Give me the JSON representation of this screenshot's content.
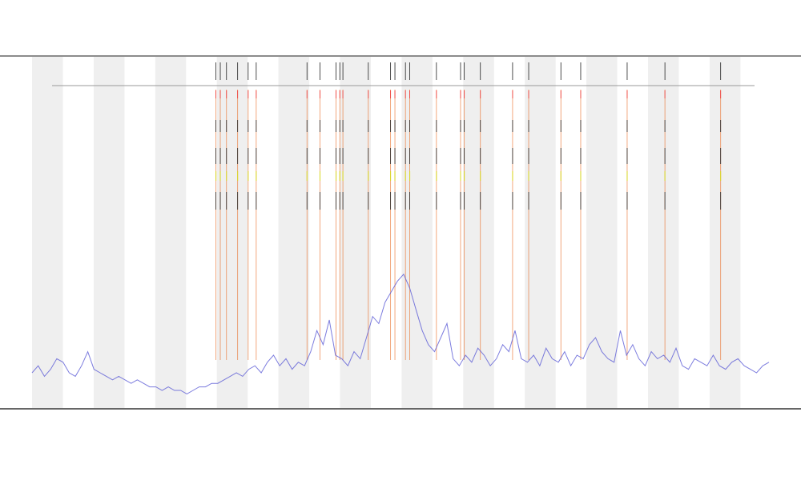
{
  "chart_data": {
    "type": "line",
    "x": [
      0,
      1,
      2,
      3,
      4,
      5,
      6,
      7,
      8,
      9,
      10,
      11,
      12,
      13,
      14,
      15,
      16,
      17,
      18,
      19,
      20,
      21,
      22,
      23,
      24,
      25,
      26,
      27,
      28,
      29,
      30,
      31,
      32,
      33,
      34,
      35,
      36,
      37,
      38,
      39,
      40,
      41,
      42,
      43,
      44,
      45,
      46,
      47,
      48,
      49,
      50,
      51,
      52,
      53,
      54,
      55,
      56,
      57,
      58,
      59,
      60,
      61,
      62,
      63,
      64,
      65,
      66,
      67,
      68,
      69,
      70,
      71,
      72,
      73,
      74,
      75,
      76,
      77,
      78,
      79,
      80,
      81,
      82,
      83,
      84,
      85,
      86,
      87,
      88,
      89,
      90,
      91,
      92,
      93,
      94,
      95,
      96,
      97,
      98,
      99,
      100,
      101,
      102,
      103,
      104,
      105,
      106,
      107,
      108,
      109,
      110,
      111,
      112,
      113,
      114,
      115,
      116,
      117,
      118,
      119
    ],
    "series": [
      {
        "color": "#5b5bd6",
        "values": [
          10,
          12,
          9,
          11,
          14,
          13,
          10,
          9,
          12,
          16,
          11,
          10,
          9,
          8,
          9,
          8,
          7,
          8,
          7,
          6,
          6,
          5,
          6,
          5,
          5,
          4,
          5,
          6,
          6,
          7,
          7,
          8,
          9,
          10,
          9,
          11,
          12,
          10,
          13,
          15,
          12,
          14,
          11,
          13,
          12,
          16,
          22,
          18,
          25,
          15,
          14,
          12,
          16,
          14,
          20,
          26,
          24,
          30,
          33,
          36,
          38,
          34,
          28,
          22,
          18,
          16,
          20,
          24,
          14,
          12,
          15,
          13,
          17,
          15,
          12,
          14,
          18,
          16,
          22,
          14,
          13,
          15,
          12,
          17,
          14,
          13,
          16,
          12,
          15,
          14,
          18,
          20,
          16,
          14,
          13,
          22,
          15,
          18,
          14,
          12,
          16,
          14,
          15,
          13,
          17,
          12,
          11,
          14,
          13,
          12,
          15,
          12,
          11,
          13,
          14,
          12,
          11,
          10,
          12,
          13
        ]
      }
    ],
    "events": {
      "color": "#e8651a",
      "x": [
        29.7,
        30.4,
        31.4,
        33.2,
        34.9,
        36.2,
        44.4,
        46.5,
        49.1,
        49.7,
        50.2,
        54.3,
        57.9,
        58.6,
        60.3,
        61,
        65.3,
        69.2,
        69.8,
        72.4,
        77.6,
        80.2,
        85.4,
        88.6,
        96.1,
        102.2,
        111.2
      ]
    },
    "xlim": [
      0,
      119
    ],
    "ylim": [
      0,
      100
    ]
  }
}
